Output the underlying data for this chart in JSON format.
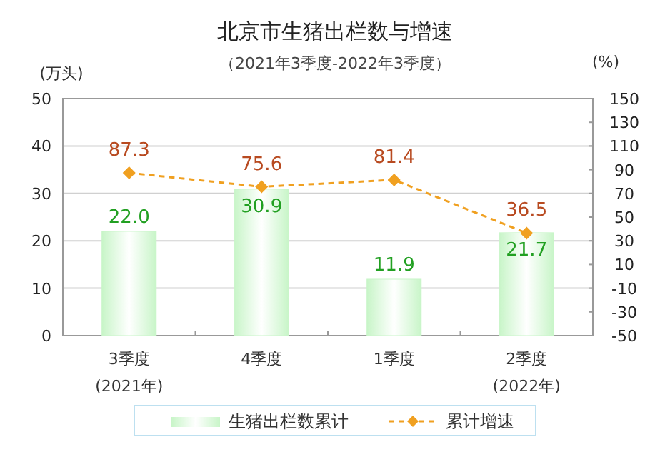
{
  "chart_data": {
    "type": "bar",
    "title": "北京市生猪出栏数与增速",
    "subtitle": "（2021年3季度-2022年3季度）",
    "ylabel": "(万头)",
    "y2label": "(%)",
    "categories": [
      "3季度\n(2021年)",
      "4季度",
      "1季度",
      "2季度\n(2022年)"
    ],
    "series": [
      {
        "name": "生猪出栏数累计",
        "color": "#c8f5c8",
        "values": [
          22.0,
          30.9,
          11.9,
          21.7
        ],
        "value_labels": [
          "22.0",
          "30.9",
          "11.9",
          "21.7"
        ]
      },
      {
        "name": "累计增速",
        "type": "line",
        "axis": "y2",
        "color": "#f0a020",
        "marker": "diamond",
        "line_style": "dashed",
        "values": [
          87.3,
          75.6,
          81.4,
          36.5
        ],
        "value_labels": [
          "87.3",
          "75.6",
          "81.4",
          "36.5"
        ]
      }
    ],
    "ylim": [
      0,
      50
    ],
    "yticks": [
      0,
      10,
      20,
      30,
      40,
      50
    ],
    "y2lim": [
      -50,
      150
    ],
    "y2ticks": [
      -50,
      -30,
      -10,
      10,
      30,
      50,
      70,
      90,
      110,
      130,
      150
    ],
    "grid": "y",
    "legend": "bottom"
  }
}
